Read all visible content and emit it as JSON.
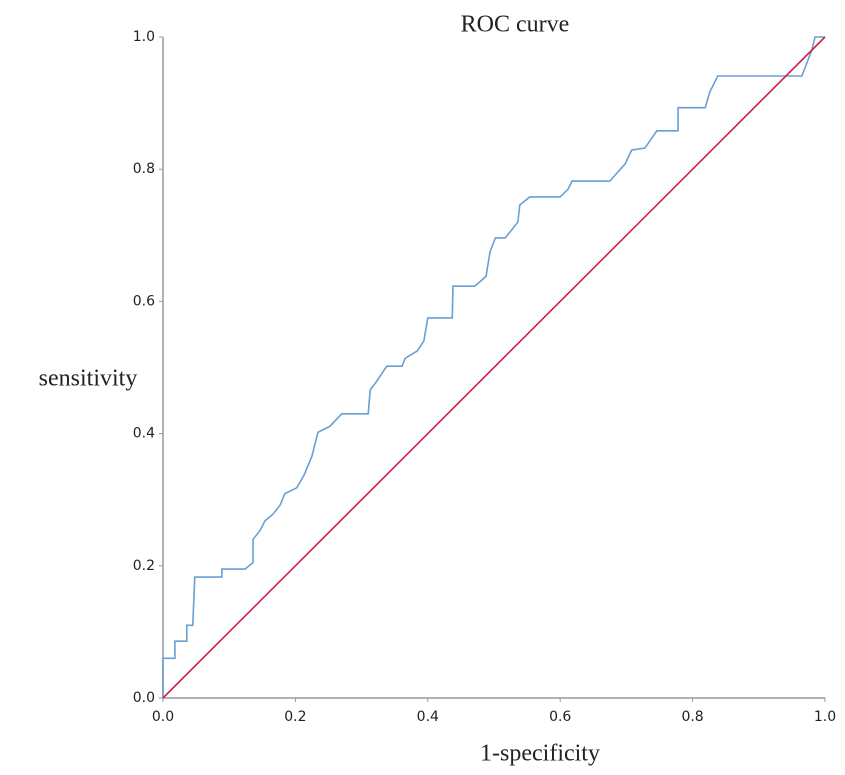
{
  "chart_data": {
    "type": "line",
    "title": "ROC curve",
    "xlabel": "1-specificity",
    "ylabel": "sensitivity",
    "xlim": [
      0,
      1
    ],
    "ylim": [
      0,
      1
    ],
    "xticks": [
      {
        "value": 0,
        "label": "0.0"
      },
      0.2,
      0.4,
      0.6,
      0.8,
      {
        "value": 1,
        "label": "1.0"
      }
    ],
    "yticks": [
      {
        "value": 0,
        "label": "0.0"
      },
      0.2,
      0.4,
      0.6,
      0.8,
      {
        "value": 1,
        "label": "1.0"
      }
    ],
    "series": [
      {
        "color": "#6a9fd4",
        "x": [
          0,
          0,
          0.018,
          0.018,
          0.036,
          0.036,
          0.045,
          0.048,
          0.089,
          0.089,
          0.124,
          0.136,
          0.136,
          0.147,
          0.154,
          0.166,
          0.177,
          0.184,
          0.202,
          0.213,
          0.225,
          0.234,
          0.252,
          0.27,
          0.31,
          0.313,
          0.322,
          0.338,
          0.361,
          0.366,
          0.384,
          0.394,
          0.4,
          0.437,
          0.438,
          0.471,
          0.488,
          0.494,
          0.502,
          0.517,
          0.536,
          0.539,
          0.554,
          0.6,
          0.612,
          0.618,
          0.675,
          0.698,
          0.708,
          0.728,
          0.746,
          0.778,
          0.778,
          0.819,
          0.826,
          0.838,
          0.965,
          0.98,
          0.985,
          1
        ],
        "values": [
          0,
          0.06,
          0.06,
          0.086,
          0.086,
          0.11,
          0.11,
          0.183,
          0.183,
          0.195,
          0.195,
          0.205,
          0.24,
          0.254,
          0.268,
          0.278,
          0.292,
          0.309,
          0.318,
          0.337,
          0.366,
          0.402,
          0.411,
          0.43,
          0.43,
          0.466,
          0.478,
          0.502,
          0.502,
          0.514,
          0.525,
          0.54,
          0.575,
          0.575,
          0.623,
          0.623,
          0.638,
          0.675,
          0.696,
          0.696,
          0.72,
          0.746,
          0.758,
          0.758,
          0.77,
          0.782,
          0.782,
          0.808,
          0.829,
          0.832,
          0.858,
          0.858,
          0.893,
          0.893,
          0.917,
          0.941,
          0.941,
          0.98,
          1,
          1
        ]
      },
      {
        "color": "#d0204a",
        "x": [
          0,
          1
        ],
        "values": [
          0,
          1
        ]
      }
    ]
  }
}
